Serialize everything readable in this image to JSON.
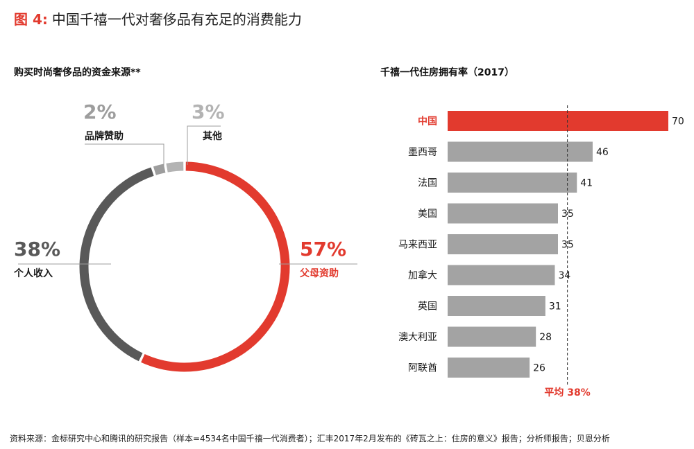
{
  "figure": {
    "number": "图 4:",
    "title": "中国千禧一代对奢侈品有充足的消费能力"
  },
  "footer": {
    "source": "资料来源：金标研究中心和腾讯的研究报告（样本=4534名中国千禧一代消费者）；汇丰2017年2月发布的《砖瓦之上：住房的意义》报告；分析师报告；贝恩分析"
  },
  "colors": {
    "red": "#e23a2e",
    "dark_gray": "#595959",
    "mid_gray": "#9d9d9d",
    "light_gray": "#b3b3b3",
    "bar_gray": "#a3a3a3"
  },
  "chart_data": [
    {
      "type": "pie",
      "title": "购买时尚奢侈品的资金来源**",
      "slices": [
        {
          "label": "父母资助",
          "value": 57,
          "display": "57%",
          "color": "#e23a2e"
        },
        {
          "label": "个人收入",
          "value": 38,
          "display": "38%",
          "color": "#595959"
        },
        {
          "label": "品牌赞助",
          "value": 2,
          "display": "2%",
          "color": "#9d9d9d"
        },
        {
          "label": "其他",
          "value": 3,
          "display": "3%",
          "color": "#b3b3b3"
        }
      ]
    },
    {
      "type": "bar",
      "orientation": "horizontal",
      "title": "千禧一代住房拥有率（2017）",
      "categories": [
        "中国",
        "墨西哥",
        "法国",
        "美国",
        "马来西亚",
        "加拿大",
        "英国",
        "澳大利亚",
        "阿联酋"
      ],
      "values": [
        70,
        46,
        41,
        35,
        35,
        34,
        31,
        28,
        26
      ],
      "highlight": "中国",
      "reference_line": {
        "value": 38,
        "label": "平均 38%",
        "style": "dashed"
      },
      "xlim": [
        0,
        70
      ]
    }
  ]
}
